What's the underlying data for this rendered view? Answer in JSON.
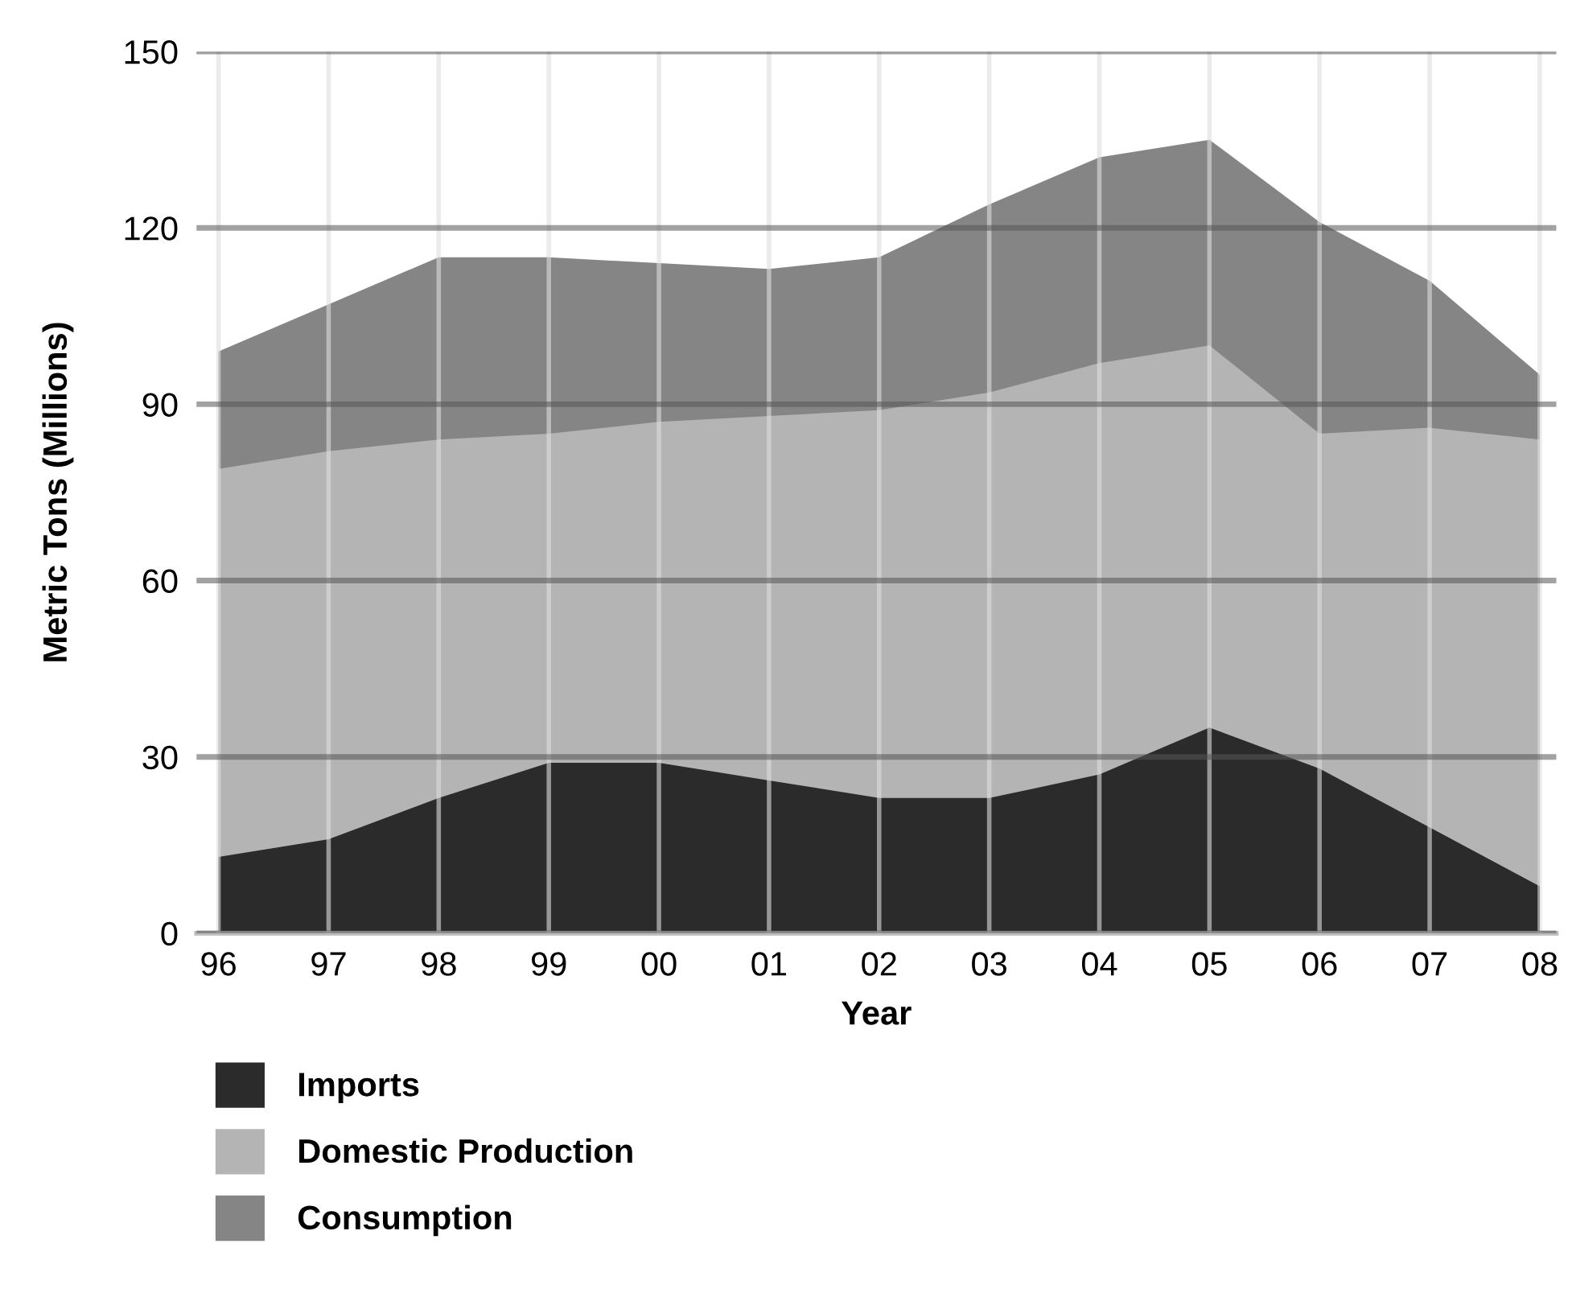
{
  "chart_data": {
    "type": "area",
    "xlabel": "Year",
    "ylabel": "Metric Tons (Millions)",
    "categories": [
      "96",
      "97",
      "98",
      "99",
      "00",
      "01",
      "02",
      "03",
      "04",
      "05",
      "06",
      "07",
      "08"
    ],
    "series": [
      {
        "name": "Consumption",
        "color": "#858585",
        "values": [
          99,
          107,
          115,
          115,
          114,
          113,
          115,
          124,
          132,
          135,
          121,
          111,
          95
        ]
      },
      {
        "name": "Domestic Production",
        "color": "#b4b4b4",
        "values": [
          79,
          82,
          84,
          85,
          87,
          88,
          89,
          92,
          97,
          100,
          85,
          86,
          84
        ]
      },
      {
        "name": "Imports",
        "color": "#2b2b2b",
        "values": [
          13,
          16,
          23,
          29,
          29,
          26,
          23,
          23,
          27,
          35,
          28,
          18,
          8
        ]
      }
    ],
    "ylim": [
      0,
      150
    ],
    "yticks": [
      0,
      30,
      60,
      90,
      120,
      150
    ],
    "grid": true,
    "legend": "bottom"
  }
}
